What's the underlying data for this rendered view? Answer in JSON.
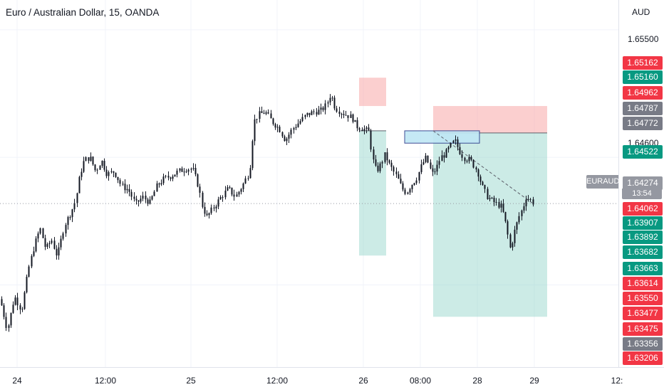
{
  "header": {
    "title": "Euro / Australian Dollar, 15, OANDA"
  },
  "price_scale": {
    "currency": "AUD",
    "ticks": [
      "1.65500",
      "1.64600"
    ],
    "badges": [
      {
        "label": "1.65162",
        "color": "#f23645"
      },
      {
        "label": "1.65160",
        "color": "#089981"
      },
      {
        "label": "1.64962",
        "color": "#f23645"
      },
      {
        "label": "1.64787",
        "color": "#787b86"
      },
      {
        "label": "1.64772",
        "color": "#787b86"
      },
      {
        "label": "1.64522",
        "color": "#089981"
      },
      {
        "label": "1.64274",
        "color": "#9598a1"
      },
      {
        "label": "1.64062",
        "color": "#f23645"
      },
      {
        "label": "1.63907",
        "color": "#089981"
      },
      {
        "label": "1.63892",
        "color": "#089981"
      },
      {
        "label": "1.63682",
        "color": "#089981"
      },
      {
        "label": "1.63663",
        "color": "#089981"
      },
      {
        "label": "1.63614",
        "color": "#f23645"
      },
      {
        "label": "1.63550",
        "color": "#f23645"
      },
      {
        "label": "1.63477",
        "color": "#f23645"
      },
      {
        "label": "1.63475",
        "color": "#f23645"
      },
      {
        "label": "1.63356",
        "color": "#787b86"
      },
      {
        "label": "1.63206",
        "color": "#f23645"
      }
    ],
    "symbol_tag": "EURAUD",
    "countdown": "13:54"
  },
  "time_axis": {
    "ticks": [
      "24",
      "12:00",
      "25",
      "12:00",
      "26",
      "08:00",
      "28",
      "29",
      "12:"
    ]
  },
  "colors": {
    "up": "#131722",
    "down": "#131722",
    "stop_zone": "#f7a8a8",
    "target_zone": "#8fd3c7",
    "rect_box": "#bfe7f5",
    "grid": "#f0f3fa"
  },
  "chart_data": {
    "type": "candlestick",
    "symbol": "EURAUD",
    "interval": "15",
    "ylim": [
      1.6312,
      1.6571
    ],
    "last_price": 1.64274,
    "path": [
      [
        0,
        1.636
      ],
      [
        10,
        1.6338
      ],
      [
        20,
        1.6362
      ],
      [
        30,
        1.6352
      ],
      [
        40,
        1.6382
      ],
      [
        48,
        1.6398
      ],
      [
        56,
        1.641
      ],
      [
        64,
        1.6395
      ],
      [
        72,
        1.6402
      ],
      [
        80,
        1.639
      ],
      [
        90,
        1.6412
      ],
      [
        100,
        1.6422
      ],
      [
        106,
        1.643
      ],
      [
        112,
        1.6448
      ],
      [
        118,
        1.6458
      ],
      [
        126,
        1.646
      ],
      [
        134,
        1.645
      ],
      [
        142,
        1.6458
      ],
      [
        150,
        1.6448
      ],
      [
        160,
        1.645
      ],
      [
        170,
        1.644
      ],
      [
        180,
        1.6437
      ],
      [
        190,
        1.6427
      ],
      [
        200,
        1.6432
      ],
      [
        210,
        1.6428
      ],
      [
        220,
        1.644
      ],
      [
        230,
        1.6445
      ],
      [
        240,
        1.6447
      ],
      [
        250,
        1.645
      ],
      [
        260,
        1.6452
      ],
      [
        270,
        1.6452
      ],
      [
        278,
        1.644
      ],
      [
        284,
        1.6425
      ],
      [
        290,
        1.6418
      ],
      [
        300,
        1.6425
      ],
      [
        310,
        1.6432
      ],
      [
        320,
        1.6438
      ],
      [
        330,
        1.6432
      ],
      [
        340,
        1.644
      ],
      [
        350,
        1.645
      ],
      [
        356,
        1.6485
      ],
      [
        362,
        1.649
      ],
      [
        372,
        1.6492
      ],
      [
        382,
        1.6485
      ],
      [
        392,
        1.648
      ],
      [
        400,
        1.6472
      ],
      [
        410,
        1.648
      ],
      [
        420,
        1.6485
      ],
      [
        430,
        1.649
      ],
      [
        440,
        1.6492
      ],
      [
        450,
        1.6493
      ],
      [
        458,
        1.6497
      ],
      [
        464,
        1.6505
      ],
      [
        470,
        1.6495
      ],
      [
        478,
        1.6492
      ],
      [
        486,
        1.649
      ],
      [
        494,
        1.6488
      ],
      [
        500,
        1.6482
      ],
      [
        510,
        1.648
      ],
      [
        518,
        1.6478
      ],
      [
        522,
        1.646
      ],
      [
        528,
        1.645
      ],
      [
        534,
        1.6455
      ],
      [
        540,
        1.6462
      ],
      [
        546,
        1.6455
      ],
      [
        552,
        1.645
      ],
      [
        558,
        1.6445
      ],
      [
        564,
        1.6438
      ],
      [
        570,
        1.6435
      ],
      [
        576,
        1.644
      ],
      [
        584,
        1.6445
      ],
      [
        592,
        1.6455
      ],
      [
        598,
        1.646
      ],
      [
        606,
        1.6448
      ],
      [
        612,
        1.6452
      ],
      [
        618,
        1.646
      ],
      [
        624,
        1.6462
      ],
      [
        632,
        1.6468
      ],
      [
        638,
        1.6472
      ],
      [
        644,
        1.6465
      ],
      [
        650,
        1.646
      ],
      [
        660,
        1.6458
      ],
      [
        670,
        1.645
      ],
      [
        676,
        1.644
      ],
      [
        684,
        1.6432
      ],
      [
        694,
        1.6428
      ],
      [
        704,
        1.6425
      ],
      [
        710,
        1.6412
      ],
      [
        716,
        1.6395
      ],
      [
        722,
        1.6408
      ],
      [
        728,
        1.6418
      ],
      [
        734,
        1.6425
      ],
      [
        738,
        1.6432
      ],
      [
        744,
        1.643
      ],
      [
        750,
        1.6427
      ]
    ],
    "drawings": [
      {
        "name": "short-position-1",
        "stop": [
          1.65162,
          1.64962
        ],
        "target": [
          1.64787,
          1.63907
        ],
        "x": [
          504,
          542
        ]
      },
      {
        "name": "short-position-2",
        "stop": [
          1.64962,
          1.64772
        ],
        "target": [
          1.64772,
          1.63475
        ],
        "x": [
          608,
          768
        ]
      },
      {
        "name": "zone-box",
        "price": [
          1.64787,
          1.647
        ],
        "x": [
          568,
          673
        ]
      },
      {
        "name": "projection-line",
        "from": [
          608,
          1.64787
        ],
        "to": [
          748,
          1.64274
        ]
      }
    ]
  }
}
